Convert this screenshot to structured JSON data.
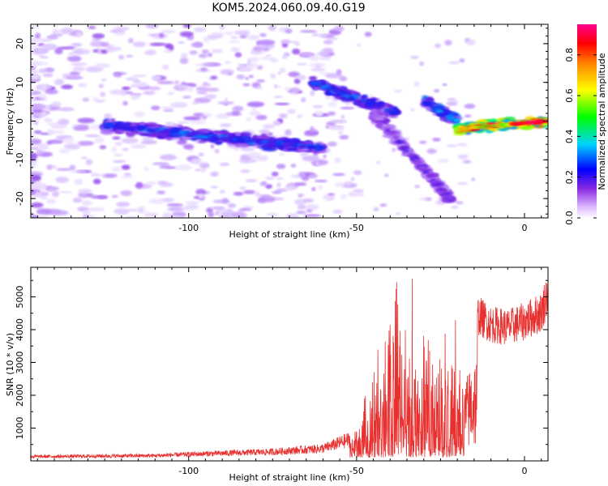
{
  "title": "KOM5.2024.060.09.40.G19",
  "top_panel": {
    "xlabel": "Height of straight line (km)",
    "ylabel": "Frequency (Hz)",
    "colorbar_label": "Normalized spectral amplitude",
    "x_ticks": [
      "-100",
      "-50",
      "0"
    ],
    "y_ticks": [
      "20",
      "10",
      "0",
      "-10",
      "-20"
    ],
    "colorbar_ticks": [
      "0.0",
      "0.2",
      "0.4",
      "0.6",
      "0.8"
    ]
  },
  "bottom_panel": {
    "xlabel": "Height of straight line (km)",
    "ylabel": "SNR (10 * v/v)",
    "x_ticks": [
      "-100",
      "-50",
      "0"
    ],
    "y_ticks": [
      "5000",
      "4000",
      "3000",
      "2000",
      "1000"
    ]
  },
  "chart_data": [
    {
      "type": "heatmap",
      "title": "KOM5.2024.060.09.40.G19",
      "xlabel": "Height of straight line (km)",
      "ylabel": "Frequency (Hz)",
      "xlim": [
        -147,
        7
      ],
      "ylim": [
        -25,
        25
      ],
      "zlabel": "Normalized spectral amplitude",
      "zlim": [
        0,
        0.95
      ],
      "colormap": "rainbow (white-purple-blue-cyan-green-yellow-red-magenta)",
      "features": [
        {
          "x": [
            -125,
            -60
          ],
          "y": [
            -1,
            -7
          ],
          "peak_amplitude": 0.3
        },
        {
          "x": [
            -63,
            -38
          ],
          "y": [
            10,
            2
          ],
          "peak_amplitude": 0.3
        },
        {
          "x": [
            -45,
            -22
          ],
          "y": [
            2,
            -20
          ],
          "peak_amplitude": 0.2
        },
        {
          "x": [
            -30,
            -20
          ],
          "y": [
            5,
            0
          ],
          "peak_amplitude": 0.35
        },
        {
          "x": [
            -20,
            7
          ],
          "y": [
            -2,
            0
          ],
          "peak_amplitude": 0.95
        }
      ]
    },
    {
      "type": "line",
      "xlabel": "Height of straight line (km)",
      "ylabel": "SNR (10 * v/v)",
      "xlim": [
        -147,
        7
      ],
      "ylim": [
        0,
        5900
      ],
      "color": "#e8302f",
      "envelope": {
        "x": [
          -147,
          -110,
          -95,
          -75,
          -60,
          -52,
          -48,
          -45,
          -42,
          -39,
          -36,
          -33,
          -30,
          -27,
          -24,
          -21,
          -19,
          -15,
          -10,
          -5,
          0,
          5,
          7
        ],
        "y": [
          180,
          220,
          300,
          380,
          520,
          900,
          1600,
          3200,
          4500,
          5800,
          5600,
          4200,
          4800,
          3700,
          3700,
          4100,
          2900,
          5000,
          4600,
          4500,
          4700,
          5000,
          5700
        ]
      }
    }
  ]
}
